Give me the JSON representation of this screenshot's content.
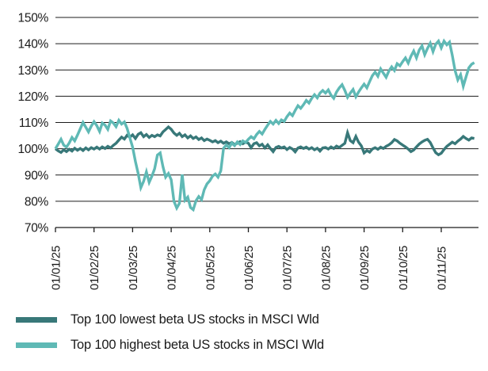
{
  "chart_data": {
    "type": "line",
    "title": "",
    "subtitle": "",
    "grid": "horizontal",
    "legend_position": "bottom-left",
    "y_axis": {
      "min": 70,
      "max": 150,
      "step": 10,
      "unit": "%",
      "tick_labels": [
        "150%",
        "140%",
        "130%",
        "120%",
        "110%",
        "100%",
        "90%",
        "80%",
        "70%"
      ],
      "tick_values": [
        150,
        140,
        130,
        120,
        110,
        100,
        90,
        80,
        70
      ]
    },
    "x_axis": {
      "unit": "date dd/mm/yy",
      "tick_labels": [
        "01/01/25",
        "01/02/25",
        "01/03/25",
        "01/04/25",
        "01/05/25",
        "01/06/25",
        "01/07/25",
        "01/08/25",
        "01/09/25",
        "01/10/25",
        "01/11/25"
      ]
    },
    "points_per_month": 14,
    "series": [
      {
        "name": "Top 100 lowest beta US stocks in MSCI Wld",
        "color": "#387879",
        "values": [
          100.0,
          99.2,
          98.6,
          99.6,
          98.9,
          99.8,
          99.1,
          100.2,
          99.4,
          100.1,
          99.3,
          100.3,
          99.6,
          100.4,
          99.9,
          100.6,
          99.9,
          100.7,
          100.1,
          100.9,
          100.3,
          101.3,
          102.1,
          103.3,
          104.4,
          103.7,
          105.1,
          104.4,
          105.3,
          103.9,
          105.5,
          106.1,
          104.6,
          105.4,
          104.3,
          105.1,
          104.6,
          105.3,
          104.9,
          106.4,
          107.3,
          108.3,
          107.4,
          106.0,
          105.1,
          105.9,
          104.6,
          105.3,
          104.1,
          104.9,
          103.9,
          104.5,
          103.5,
          104.1,
          103.1,
          103.7,
          103.2,
          102.6,
          103.1,
          102.3,
          102.9,
          102.1,
          102.6,
          101.9,
          102.4,
          101.6,
          102.1,
          102.7,
          101.9,
          102.5,
          102.1,
          100.4,
          101.9,
          102.3,
          101.1,
          101.7,
          100.3,
          101.5,
          100.1,
          98.9,
          100.5,
          100.9,
          100.3,
          100.7,
          99.7,
          100.5,
          99.9,
          98.8,
          100.3,
          100.7,
          100.1,
          100.6,
          99.9,
          100.4,
          99.6,
          100.2,
          99.1,
          100.3,
          100.5,
          99.9,
          100.7,
          100.1,
          101.0,
          100.5,
          101.3,
          102.1,
          106.1,
          103.1,
          102.3,
          104.7,
          102.5,
          101.1,
          98.4,
          99.3,
          98.7,
          99.9,
          100.4,
          99.8,
          100.6,
          100.1,
          100.9,
          101.5,
          102.3,
          103.5,
          103.0,
          102.1,
          101.4,
          100.7,
          99.9,
          98.9,
          99.5,
          100.7,
          101.8,
          102.6,
          103.2,
          103.6,
          102.4,
          100.3,
          98.5,
          97.7,
          98.3,
          99.7,
          100.9,
          101.7,
          102.5,
          101.9,
          102.9,
          103.7,
          104.7,
          103.9,
          103.3,
          104.1,
          103.9
        ]
      },
      {
        "name": "Top 100 highest beta US stocks in MSCI Wld",
        "color": "#5fb9b5",
        "values": [
          100.0,
          101.8,
          103.6,
          101.4,
          100.6,
          102.2,
          104.3,
          103.0,
          105.2,
          107.6,
          110.0,
          108.2,
          106.4,
          108.6,
          110.3,
          108.8,
          106.6,
          109.8,
          109.0,
          107.4,
          110.6,
          109.8,
          108.4,
          110.8,
          109.4,
          110.2,
          107.8,
          104.2,
          100.6,
          95.2,
          90.6,
          85.2,
          87.6,
          91.2,
          87.2,
          89.6,
          92.4,
          97.6,
          98.4,
          93.2,
          89.2,
          90.6,
          88.2,
          80.0,
          77.4,
          79.2,
          90.2,
          80.4,
          81.6,
          77.6,
          76.8,
          80.2,
          81.8,
          80.6,
          84.4,
          86.6,
          87.8,
          89.6,
          90.4,
          89.2,
          91.6,
          100.2,
          101.4,
          100.4,
          102.2,
          101.2,
          102.6,
          101.6,
          103.0,
          102.4,
          103.6,
          104.6,
          103.8,
          105.4,
          106.6,
          105.6,
          107.4,
          109.0,
          110.4,
          109.4,
          110.8,
          109.6,
          111.0,
          110.4,
          112.2,
          113.6,
          112.6,
          114.6,
          116.4,
          115.4,
          116.8,
          118.4,
          117.4,
          119.2,
          120.6,
          119.4,
          121.2,
          122.2,
          121.2,
          122.4,
          120.4,
          119.2,
          121.6,
          123.2,
          124.4,
          122.2,
          119.6,
          121.2,
          122.6,
          119.8,
          121.6,
          123.2,
          124.6,
          123.2,
          125.6,
          127.8,
          129.2,
          127.6,
          130.4,
          128.8,
          127.2,
          129.6,
          131.2,
          129.8,
          132.4,
          131.6,
          133.2,
          134.6,
          132.6,
          135.2,
          137.2,
          134.6,
          137.6,
          139.2,
          135.8,
          138.2,
          140.2,
          137.0,
          139.8,
          141.0,
          138.4,
          141.0,
          139.6,
          140.6,
          135.6,
          129.8,
          126.2,
          128.2,
          123.8,
          127.4,
          130.8,
          132.2,
          132.8
        ]
      }
    ],
    "style": {
      "grid_color": "#1c1c1c",
      "axis_color": "#1c1c1c",
      "text_color": "#1a1a1a",
      "background": "#ffffff",
      "line_width": 3.4
    }
  },
  "legend": {
    "items": [
      {
        "series_index": 0
      },
      {
        "series_index": 1
      }
    ]
  }
}
